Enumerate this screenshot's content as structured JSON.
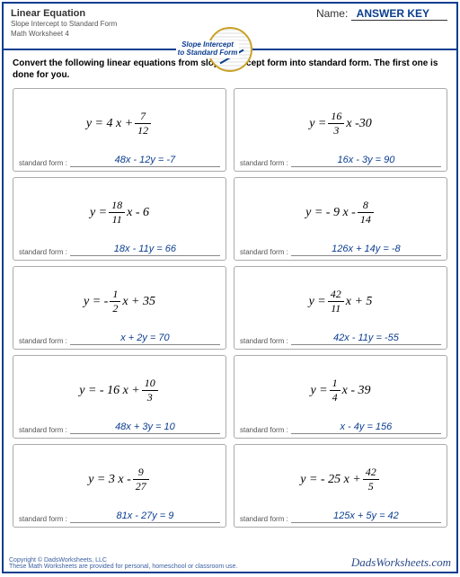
{
  "header": {
    "title": "Linear Equation",
    "subtitle1": "Slope Intercept to Standard Form",
    "subtitle2": "Math Worksheet 4",
    "name_label": "Name:",
    "name_value": "ANSWER KEY",
    "badge_line1": "Slope Intercept",
    "badge_line2": "to Standard Form"
  },
  "instructions": "Convert the following linear equations from slope intercept form into standard form. The first one is done for you.",
  "answer_label": "standard form :",
  "problems": [
    {
      "eq_html": "y = 4 x + <span class='frac'><span class='n'>7</span><span class='d'>12</span></span>",
      "answer": "48x - 12y = -7"
    },
    {
      "eq_html": "y = <span class='frac'><span class='n'>16</span><span class='d'>3</span></span> x -30",
      "answer": "16x - 3y = 90"
    },
    {
      "eq_html": "y = <span class='frac'><span class='n'>18</span><span class='d'>11</span></span> x - 6",
      "answer": "18x - 11y = 66"
    },
    {
      "eq_html": "y = - 9 x - <span class='frac'><span class='n'>8</span><span class='d'>14</span></span>",
      "answer": "126x + 14y = -8"
    },
    {
      "eq_html": "y = - <span class='frac'><span class='n'>1</span><span class='d'>2</span></span> x + 35",
      "answer": "x + 2y = 70"
    },
    {
      "eq_html": "y = <span class='frac'><span class='n'>42</span><span class='d'>11</span></span> x + 5",
      "answer": "42x - 11y = -55"
    },
    {
      "eq_html": "y = - 16 x + <span class='frac'><span class='n'>10</span><span class='d'>3</span></span>",
      "answer": "48x + 3y = 10"
    },
    {
      "eq_html": "y = <span class='frac'><span class='n'>1</span><span class='d'>4</span></span> x - 39",
      "answer": "x - 4y = 156"
    },
    {
      "eq_html": "y = 3 x - <span class='frac'><span class='n'>9</span><span class='d'>27</span></span>",
      "answer": "81x - 27y = 9"
    },
    {
      "eq_html": "y = - 25 x + <span class='frac'><span class='n'>42</span><span class='d'>5</span></span>",
      "answer": "125x + 5y = 42"
    }
  ],
  "footer": {
    "copyright": "Copyright © DadsWorksheets, LLC",
    "note": "These Math Worksheets are provided for personal, homeschool or classroom use.",
    "brand": "DadsWorksheets.com"
  },
  "colors": {
    "primary": "#0a3d8f",
    "accent": "#c9a227"
  }
}
